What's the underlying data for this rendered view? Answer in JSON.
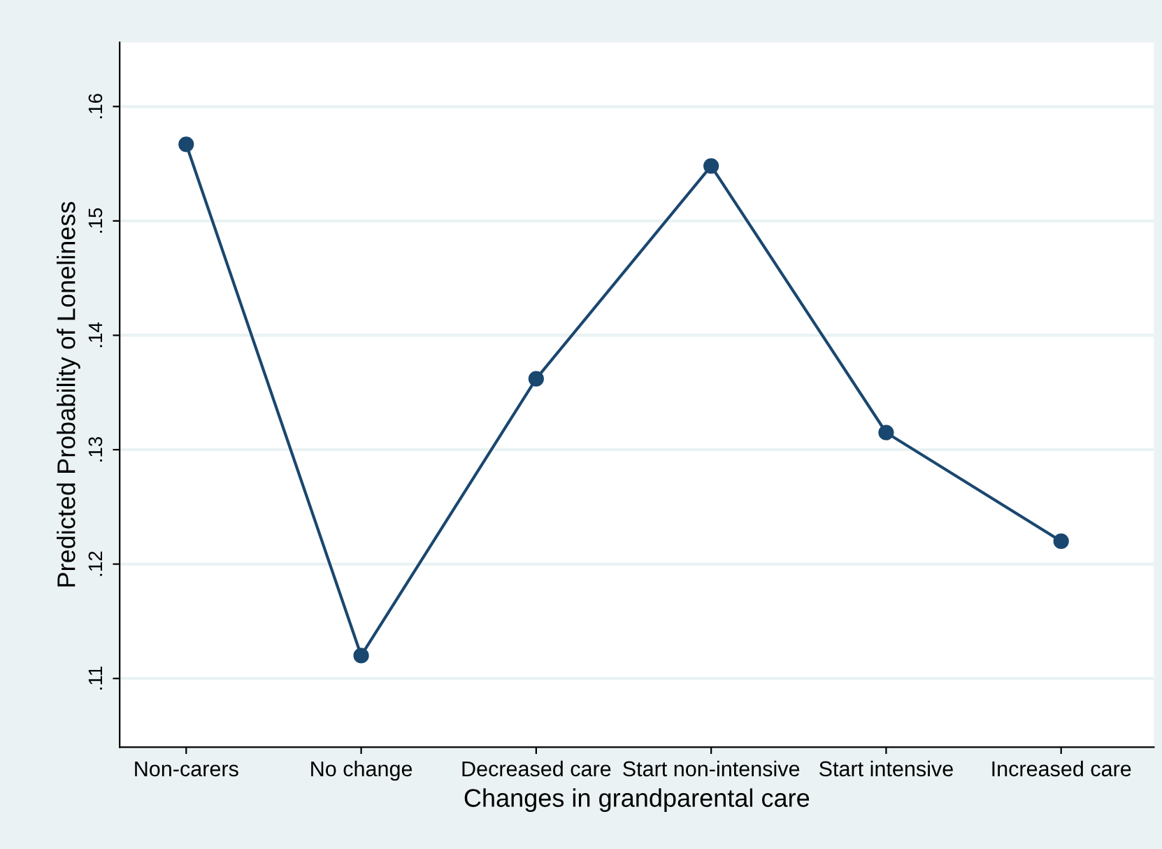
{
  "chart_data": {
    "type": "line",
    "xlabel": "Changes in grandparental care",
    "ylabel": "Predicted Probability of Loneliness",
    "categories": [
      "Non-carers",
      "No change",
      "Decreased care",
      "Start non-intensive",
      "Start intensive",
      "Increased care"
    ],
    "series": [
      {
        "color": "#1a476f",
        "values": [
          0.1567,
          0.112,
          0.1362,
          0.1548,
          0.1315,
          0.122
        ]
      }
    ],
    "ylim": [
      0.104,
      0.1656
    ],
    "yticks": [
      {
        "value": 0.11,
        "label": ".11"
      },
      {
        "value": 0.12,
        "label": ".12"
      },
      {
        "value": 0.13,
        "label": ".13"
      },
      {
        "value": 0.14,
        "label": ".14"
      },
      {
        "value": 0.15,
        "label": ".15"
      },
      {
        "value": 0.16,
        "label": ".16"
      }
    ],
    "grid": "y",
    "marker": "circle",
    "line_style": "solid"
  }
}
